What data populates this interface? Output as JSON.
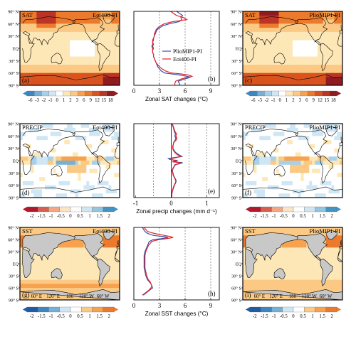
{
  "colors": {
    "warm": [
      "#ffffff",
      "#fde7b6",
      "#fbc983",
      "#f6a24e",
      "#ec7a2c",
      "#d9531f",
      "#bd3324",
      "#8f1a20"
    ],
    "cool": [
      "#ffffff",
      "#cfe6f5",
      "#a8d0ea",
      "#74b0d8",
      "#3f86bf",
      "#1f5aa3"
    ],
    "land": "#c8c8c8",
    "coast": "#000000",
    "pliomip1": "#3b4ea6",
    "eoi400": "#e0242a"
  },
  "chart_data": [
    {
      "type": "heatmap",
      "variable": "SAT",
      "experiment": "Eoi400-PI",
      "panel": "(a)",
      "lat_ticks": [
        "90° N",
        "60° N",
        "30° N",
        "EQ",
        "30° S",
        "60° S",
        "90° S"
      ],
      "colorbar": {
        "ticks": [
          "-6",
          "-3",
          "-2",
          "-1",
          "0",
          "1",
          "2",
          "3",
          "6",
          "9",
          "12",
          "15",
          "18"
        ]
      },
      "zonal_anomaly_by_lat": {
        "lat": [
          90,
          75,
          60,
          45,
          30,
          15,
          0,
          -15,
          -30,
          -45,
          -60,
          -67,
          -75,
          -90
        ],
        "value": [
          4.5,
          4.9,
          3.5,
          2.6,
          2.4,
          2.2,
          2.2,
          2.3,
          2.6,
          3.0,
          4.5,
          6.8,
          5.0,
          3.0
        ]
      }
    },
    {
      "type": "line",
      "variable": "SAT",
      "panel": "(b)",
      "xlabel": "Zonal SAT changes (°C)",
      "x_ticks": [
        "0",
        "3",
        "6",
        "9"
      ],
      "xlim": [
        0,
        10
      ],
      "ylim": [
        -90,
        90
      ],
      "dashed_x": [
        3,
        6,
        9
      ],
      "lat": [
        90,
        80,
        75,
        70,
        65,
        60,
        55,
        50,
        45,
        40,
        35,
        30,
        25,
        20,
        15,
        10,
        5,
        0,
        -5,
        -10,
        -15,
        -20,
        -25,
        -30,
        -35,
        -40,
        -45,
        -50,
        -55,
        -60,
        -62,
        -65,
        -68,
        -70,
        -72,
        -75,
        -80,
        -85,
        -90
      ],
      "series": [
        {
          "name": "PlioMIP1-PI",
          "values": [
            5.0,
            5.7,
            5.5,
            5.6,
            5.3,
            4.2,
            3.4,
            3.0,
            2.7,
            2.6,
            2.5,
            2.4,
            2.3,
            2.3,
            2.2,
            2.3,
            2.2,
            2.3,
            2.2,
            2.2,
            2.3,
            2.3,
            2.4,
            2.5,
            2.6,
            2.7,
            2.8,
            3.0,
            3.2,
            3.6,
            4.3,
            5.4,
            6.2,
            6.6,
            6.4,
            5.9,
            5.2,
            5.3,
            5.4
          ]
        },
        {
          "name": "Eoi400-PI",
          "values": [
            4.3,
            5.0,
            5.8,
            6.2,
            4.6,
            3.6,
            3.1,
            2.8,
            2.6,
            2.5,
            2.4,
            2.4,
            2.3,
            2.2,
            2.2,
            2.2,
            2.1,
            2.2,
            2.2,
            2.2,
            2.3,
            2.3,
            2.4,
            2.5,
            2.6,
            2.8,
            3.0,
            3.3,
            3.7,
            4.4,
            5.4,
            6.4,
            6.8,
            6.5,
            6.0,
            5.5,
            4.9,
            4.8,
            4.8
          ]
        }
      ]
    },
    {
      "type": "heatmap",
      "variable": "SAT",
      "experiment": "PlioMIP1-PI",
      "panel": "(c)",
      "lat_ticks": [
        "90° N",
        "60° N",
        "30° N",
        "EQ",
        "30° S",
        "60° S",
        "90° S"
      ],
      "colorbar": {
        "ticks": [
          "-6",
          "-3",
          "-2",
          "-1",
          "0",
          "1",
          "2",
          "3",
          "6",
          "9",
          "12",
          "15",
          "18"
        ]
      }
    },
    {
      "type": "heatmap",
      "variable": "PRECIP",
      "experiment": "Eoi400-PI",
      "panel": "(d)",
      "lat_ticks": [
        "90° N",
        "60° N",
        "30° N",
        "EQ",
        "30° S",
        "60° S",
        "90° S"
      ],
      "colorbar": {
        "ticks": [
          "-2",
          "-1.5",
          "-1",
          "-0.5",
          "0",
          "0.5",
          "1",
          "1.5",
          "2"
        ]
      }
    },
    {
      "type": "line",
      "variable": "PRECIP",
      "panel": "(e)",
      "xlabel": "Zonal precip changes (mm d⁻¹)",
      "x_ticks": [
        "-1",
        "0",
        "1"
      ],
      "xlim": [
        -1.05,
        1.35
      ],
      "ylim": [
        -90,
        90
      ],
      "dashed_x": [
        -0.5,
        0.5,
        1.0
      ],
      "solid_x": [
        0
      ],
      "lat": [
        90,
        80,
        70,
        65,
        60,
        55,
        50,
        45,
        40,
        35,
        30,
        25,
        20,
        15,
        10,
        7,
        5,
        3,
        0,
        -3,
        -5,
        -8,
        -10,
        -15,
        -20,
        -25,
        -30,
        -35,
        -40,
        -45,
        -50,
        -55,
        -60,
        -70,
        -80,
        -90
      ],
      "series": [
        {
          "name": "PlioMIP1-PI",
          "values": [
            0.02,
            0.06,
            0.09,
            0.12,
            0.1,
            0.13,
            0.11,
            0.07,
            0.06,
            0.05,
            0.05,
            0.08,
            0.12,
            0.2,
            0.3,
            0.05,
            -0.08,
            -0.04,
            0.18,
            0.08,
            0.32,
            0.22,
            0.1,
            0.08,
            0.05,
            0.03,
            0.05,
            0.06,
            0.09,
            0.12,
            0.14,
            0.12,
            0.09,
            0.05,
            0.02,
            0.01
          ]
        },
        {
          "name": "Eoi400-PI",
          "values": [
            0.03,
            0.07,
            0.11,
            0.15,
            0.13,
            0.16,
            0.14,
            0.08,
            0.06,
            0.04,
            0.04,
            0.06,
            0.1,
            0.16,
            0.26,
            0.12,
            0.02,
            -0.02,
            0.12,
            0.03,
            0.24,
            0.18,
            0.12,
            0.07,
            0.04,
            0.02,
            0.04,
            0.05,
            0.08,
            0.11,
            0.13,
            0.11,
            0.08,
            0.04,
            0.02,
            0.01
          ]
        }
      ]
    },
    {
      "type": "heatmap",
      "variable": "PRECIP",
      "experiment": "PlioMIP1-PI",
      "panel": "(f)",
      "lat_ticks": [
        "90° N",
        "60° N",
        "30° N",
        "EQ",
        "30° S",
        "60° S",
        "90° S"
      ],
      "colorbar": {
        "ticks": [
          "-2",
          "-1.5",
          "-1",
          "-0.5",
          "0",
          "0.5",
          "1",
          "1.5",
          "2"
        ]
      }
    },
    {
      "type": "heatmap",
      "variable": "SST",
      "experiment": "Eoi400-PI",
      "panel": "(g)",
      "lat_ticks": [
        "90° N",
        "60° N",
        "30° N",
        "EQ",
        "30° S",
        "60° S",
        "90° S"
      ],
      "lon_ticks": [
        "60° E",
        "120° E",
        "180",
        "120° W",
        "60° W"
      ],
      "colorbar": {
        "ticks": [
          "-2",
          "-1.5",
          "-1",
          "-0.5",
          "0",
          "0.5",
          "1",
          "1.5",
          "2"
        ]
      }
    },
    {
      "type": "line",
      "variable": "SST",
      "panel": "(h)",
      "xlabel": "Zonal SST changes (°C)",
      "x_ticks": [
        "0",
        "3",
        "6",
        "9"
      ],
      "xlim": [
        0,
        10
      ],
      "ylim": [
        -90,
        90
      ],
      "dashed_x": [
        3,
        6,
        9
      ],
      "lat": [
        90,
        80,
        75,
        70,
        67,
        65,
        62,
        60,
        57,
        55,
        50,
        45,
        40,
        35,
        30,
        20,
        10,
        0,
        -10,
        -20,
        -30,
        -40,
        -45,
        -50,
        -55,
        -60,
        -65,
        -70,
        -75,
        -78
      ],
      "series": [
        {
          "name": "PlioMIP1-PI",
          "values": [
            1.0,
            1.3,
            1.6,
            2.3,
            3.6,
            4.0,
            3.2,
            2.3,
            2.0,
            1.8,
            1.7,
            1.6,
            1.5,
            1.4,
            1.3,
            1.2,
            1.2,
            1.2,
            1.2,
            1.3,
            1.4,
            1.6,
            1.8,
            2.0,
            2.1,
            2.2,
            1.9,
            1.6,
            1.3,
            1.1
          ]
        },
        {
          "name": "Eoi400-PI",
          "values": [
            1.2,
            1.6,
            2.4,
            3.6,
            4.3,
            4.6,
            3.8,
            3.0,
            2.4,
            2.1,
            1.9,
            1.7,
            1.6,
            1.5,
            1.4,
            1.3,
            1.3,
            1.3,
            1.3,
            1.4,
            1.5,
            1.7,
            1.9,
            2.0,
            2.1,
            2.0,
            1.8,
            1.5,
            1.2,
            1.0
          ]
        }
      ]
    },
    {
      "type": "heatmap",
      "variable": "SST",
      "experiment": "PlioMIP1-PI",
      "panel": "(i)",
      "lat_ticks": [
        "90° N",
        "60° N",
        "30° N",
        "EQ",
        "30° S",
        "60° S",
        "90° S"
      ],
      "lon_ticks": [
        "60° E",
        "120° E",
        "180",
        "120° W",
        "60° W"
      ],
      "colorbar": {
        "ticks": [
          "-2",
          "-1.5",
          "-1",
          "-0.5",
          "0",
          "0.5",
          "1",
          "1.5",
          "2"
        ]
      }
    }
  ]
}
